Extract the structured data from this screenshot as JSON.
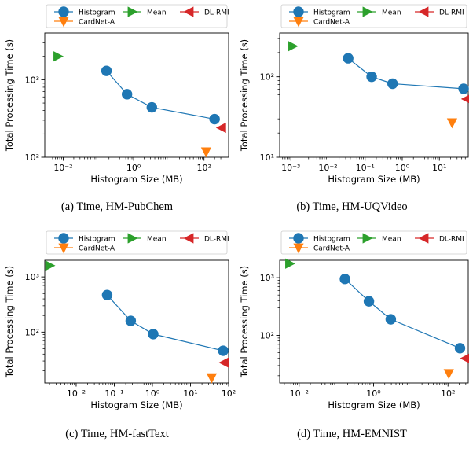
{
  "colors": {
    "Histogram": "#1f77b4",
    "Mean": "#2ca02c",
    "DL-RMI": "#d62728",
    "CardNet-A": "#ff7f0e"
  },
  "legend_entries": [
    "Histogram",
    "Mean",
    "DL-RMI",
    "CardNet-A"
  ],
  "chart_data": [
    {
      "type": "scatter",
      "caption": "(a)  Time, HM-PubChem",
      "xlabel": "Histogram Size (MB)",
      "ylabel": "Total Processing Time (s)",
      "xscale": "log",
      "yscale": "log",
      "xlim": [
        0.003,
        500
      ],
      "ylim": [
        100,
        4000
      ],
      "xticks": [
        -2,
        0,
        2
      ],
      "yticks": [
        2,
        3
      ],
      "legend": "top",
      "series": [
        {
          "name": "Histogram",
          "marker": "circle",
          "line": true,
          "x": [
            0.17,
            0.65,
            3.3,
            200
          ],
          "y": [
            1300,
            650,
            440,
            310
          ]
        },
        {
          "name": "Mean",
          "marker": "triangle-right",
          "x": [
            0.007
          ],
          "y": [
            2000
          ]
        },
        {
          "name": "DL-RMI",
          "marker": "triangle-left",
          "x": [
            320
          ],
          "y": [
            240
          ]
        },
        {
          "name": "CardNet-A",
          "marker": "triangle-down",
          "x": [
            115
          ],
          "y": [
            118
          ]
        }
      ]
    },
    {
      "type": "scatter",
      "caption": "(b)  Time, HM-UQVideo",
      "xlabel": "Histogram Size (MB)",
      "ylabel": "Total Processing Time (s)",
      "xscale": "log",
      "yscale": "log",
      "xlim": [
        0.0005,
        60
      ],
      "ylim": [
        10,
        350
      ],
      "xticks": [
        -3,
        -2,
        -1,
        0,
        1
      ],
      "yticks": [
        1,
        2
      ],
      "legend": "top",
      "series": [
        {
          "name": "Histogram",
          "marker": "circle",
          "line": true,
          "x": [
            0.035,
            0.15,
            0.55,
            45
          ],
          "y": [
            170,
            100,
            82,
            71
          ]
        },
        {
          "name": "Mean",
          "marker": "triangle-right",
          "x": [
            0.0011
          ],
          "y": [
            240
          ]
        },
        {
          "name": "DL-RMI",
          "marker": "triangle-left",
          "x": [
            55
          ],
          "y": [
            53
          ]
        },
        {
          "name": "CardNet-A",
          "marker": "triangle-down",
          "x": [
            22
          ],
          "y": [
            27
          ]
        }
      ]
    },
    {
      "type": "scatter",
      "caption": "(c)  Time, HM-fastText",
      "xlabel": "Histogram Size (MB)",
      "ylabel": "Total Processing Time (s)",
      "xscale": "log",
      "yscale": "log",
      "xlim": [
        0.0015,
        100
      ],
      "ylim": [
        12,
        2000
      ],
      "xticks": [
        -2,
        -1,
        0,
        1,
        2
      ],
      "yticks": [
        2,
        3
      ],
      "legend": "top",
      "series": [
        {
          "name": "Histogram",
          "marker": "circle",
          "line": true,
          "x": [
            0.065,
            0.27,
            1.05,
            72
          ],
          "y": [
            470,
            160,
            92,
            46
          ]
        },
        {
          "name": "Mean",
          "marker": "triangle-right",
          "x": [
            0.002
          ],
          "y": [
            1600
          ]
        },
        {
          "name": "DL-RMI",
          "marker": "triangle-left",
          "x": [
            78
          ],
          "y": [
            28
          ]
        },
        {
          "name": "CardNet-A",
          "marker": "triangle-down",
          "x": [
            36
          ],
          "y": [
            15
          ]
        }
      ]
    },
    {
      "type": "scatter",
      "caption": "(d)  Time, HM-EMNIST",
      "xlabel": "Histogram Size (MB)",
      "ylabel": "Total Processing Time (s)",
      "xscale": "log",
      "yscale": "log",
      "xlim": [
        0.003,
        350
      ],
      "ylim": [
        15,
        2000
      ],
      "xticks": [
        -2,
        0,
        2
      ],
      "yticks": [
        2,
        3
      ],
      "legend": "top",
      "series": [
        {
          "name": "Histogram",
          "marker": "circle",
          "line": true,
          "x": [
            0.17,
            0.75,
            2.9,
            210
          ],
          "y": [
            950,
            390,
            190,
            60
          ]
        },
        {
          "name": "Mean",
          "marker": "triangle-right",
          "x": [
            0.0055
          ],
          "y": [
            1750
          ]
        },
        {
          "name": "DL-RMI",
          "marker": "triangle-left",
          "x": [
            300
          ],
          "y": [
            40
          ]
        },
        {
          "name": "CardNet-A",
          "marker": "triangle-down",
          "x": [
            105
          ],
          "y": [
            22
          ]
        }
      ]
    }
  ]
}
